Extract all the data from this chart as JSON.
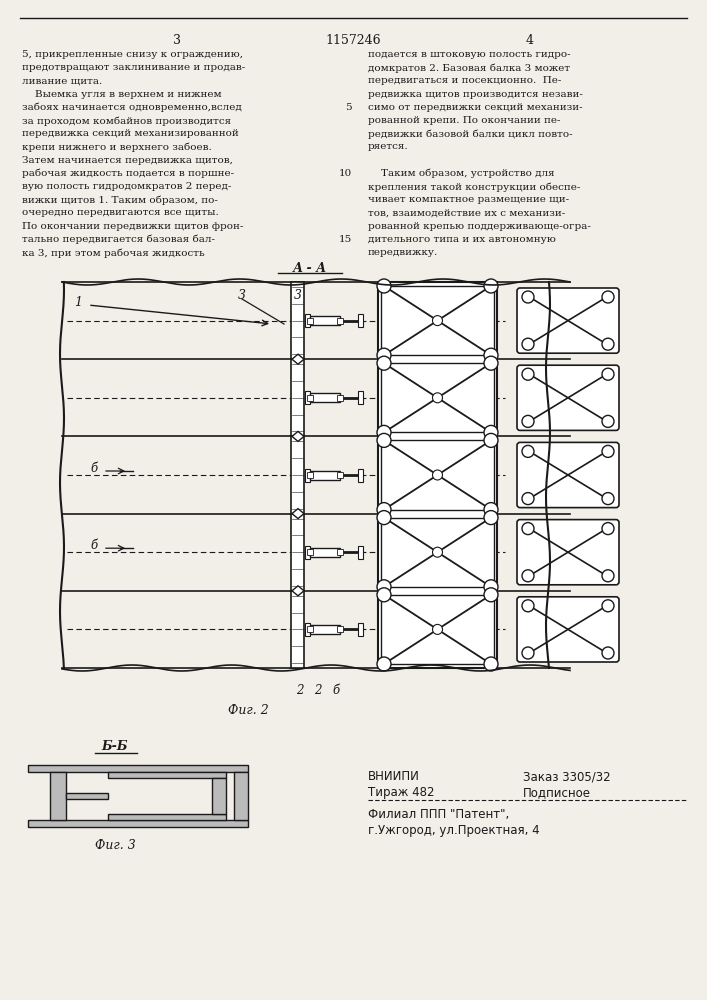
{
  "bg_color": "#f2efe8",
  "text_color": "#1a1a1a",
  "page_number_left": "3",
  "page_number_center": "1157246",
  "page_number_right": "4",
  "col_left_text": [
    "5, прикрепленные снизу к ограждению,",
    "предотвращают заклинивание и продав-",
    "ливание щита.",
    "    Выемка угля в верхнем и нижнем",
    "забоях начинается одновременно,вслед",
    "за проходом комбайнов производится",
    "передвижка секций механизированной",
    "крепи нижнего и верхнего забоев.",
    "Затем начинается передвижка щитов,",
    "рабочая жидкость подается в поршне-",
    "вую полость гидродомкратов 2 перед-",
    "вижки щитов 1. Таким образом, по-",
    "очередно передвигаются все щиты.",
    "По окончании передвижки щитов фрон-",
    "тально передвигается базовая бал-",
    "ка 3, при этом рабочая жидкость"
  ],
  "col_right_text": [
    "подается в штоковую полость гидро-",
    "домкратов 2. Базовая балка 3 может",
    "передвигаться и посекционно.  Пе-",
    "редвижка щитов производится незави-",
    "симо от передвижки секций механизи-",
    "рованной крепи. По окончании пе-",
    "редвижки базовой балки цикл повто-",
    "ряется.",
    "",
    "    Таким образом, устройство для",
    "крепления такой конструкции обеспе-",
    "чивает компактное размещение щи-",
    "тов, взаимодействие их с механизи-",
    "рованной крепью поддерживающе-огра-",
    "дительного типа и их автономную",
    "передвижку."
  ],
  "fig2_label": "Фиг. 2",
  "fig3_label": "Фиг. 3",
  "section_aa": "А - А",
  "section_bb": "Б-Б",
  "label_1": "1",
  "label_3a": "3",
  "label_3b": "3",
  "vnipi_text1": "ВНИИПИ",
  "vnipi_text2": "Заказ 3305/32",
  "tirazh_text1": "Тираж 482",
  "tirazh_text2": "Подписное",
  "filial_text": "Филиал ППП \"Патент\",",
  "address_text": "г.Ужгород, ул.Проектная, 4"
}
